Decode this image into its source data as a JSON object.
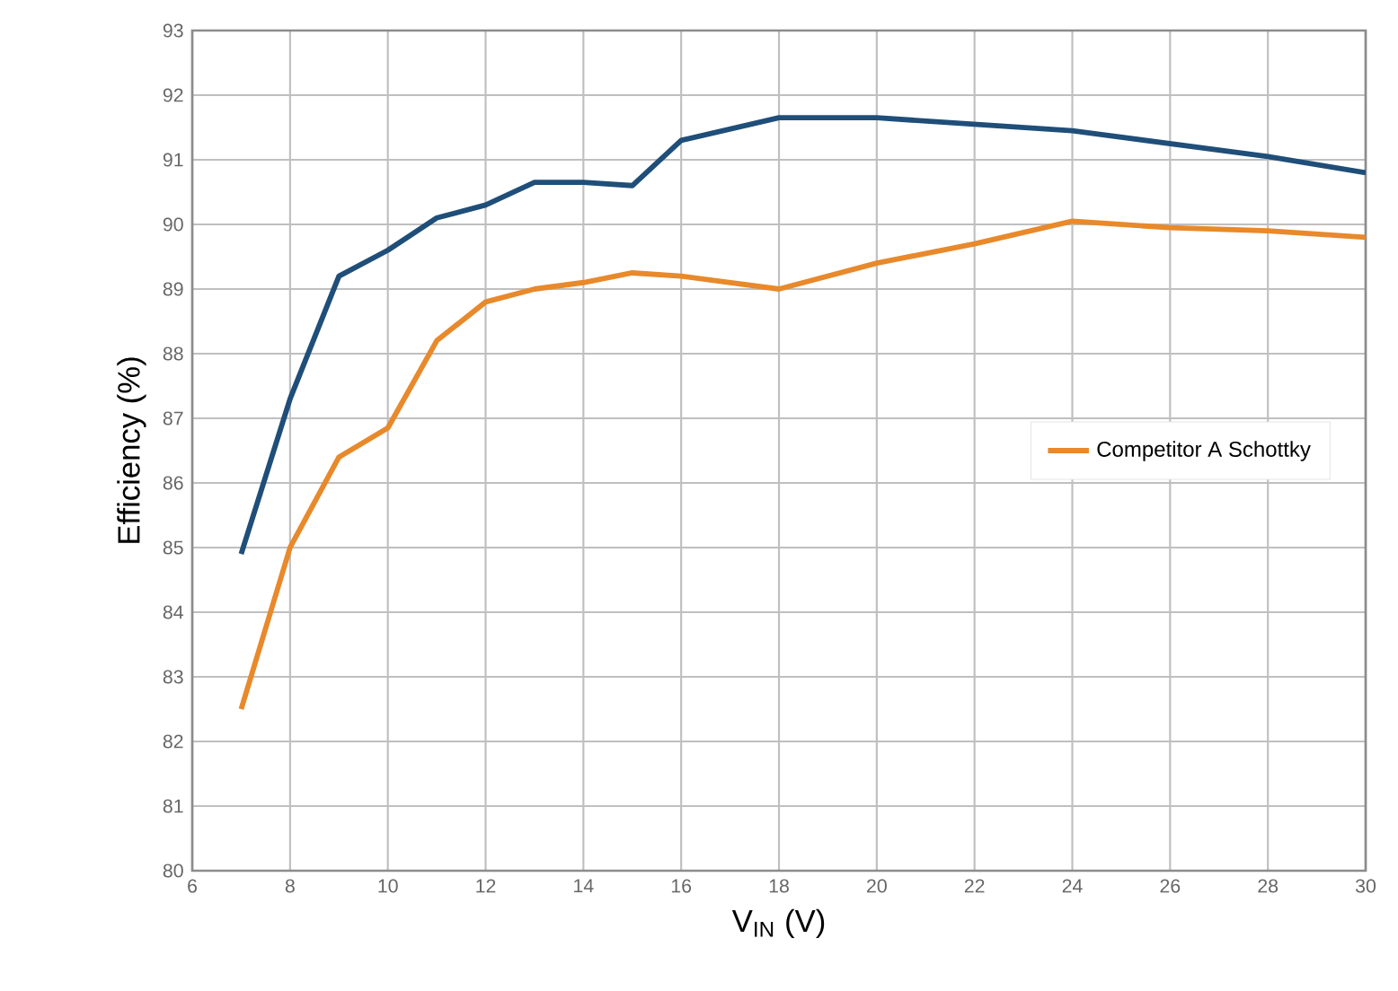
{
  "chart_data": {
    "type": "line",
    "xlabel": "V$_{IN}$ (V)",
    "ylabel": "Efficiency (%)",
    "xlim": [
      6,
      30
    ],
    "ylim": [
      80,
      93
    ],
    "xticks": [
      6,
      8,
      10,
      12,
      14,
      16,
      18,
      20,
      22,
      24,
      26,
      28,
      30
    ],
    "yticks": [
      80,
      81,
      82,
      83,
      84,
      85,
      86,
      87,
      88,
      89,
      90,
      91,
      92,
      93
    ],
    "grid": true,
    "legend": "right",
    "series": [
      {
        "color": "#1f4e79",
        "x": [
          7,
          8,
          9,
          10,
          11,
          12,
          13,
          14,
          15,
          16,
          18,
          20,
          24,
          26,
          28,
          30
        ],
        "values": [
          84.9,
          87.3,
          89.2,
          89.6,
          90.1,
          90.3,
          90.65,
          90.65,
          90.6,
          91.3,
          91.65,
          91.65,
          91.45,
          91.25,
          91.05,
          90.8
        ]
      },
      {
        "name": "Competitor A Schottky",
        "color": "#e8892b",
        "x": [
          7,
          8,
          9,
          10,
          11,
          12,
          13,
          14,
          15,
          16,
          18,
          20,
          22,
          24,
          26,
          28,
          30
        ],
        "values": [
          82.5,
          85.0,
          86.4,
          86.85,
          88.2,
          88.8,
          89.0,
          89.1,
          89.25,
          89.2,
          89.0,
          89.4,
          89.7,
          90.05,
          89.95,
          89.9,
          89.8
        ]
      }
    ]
  }
}
